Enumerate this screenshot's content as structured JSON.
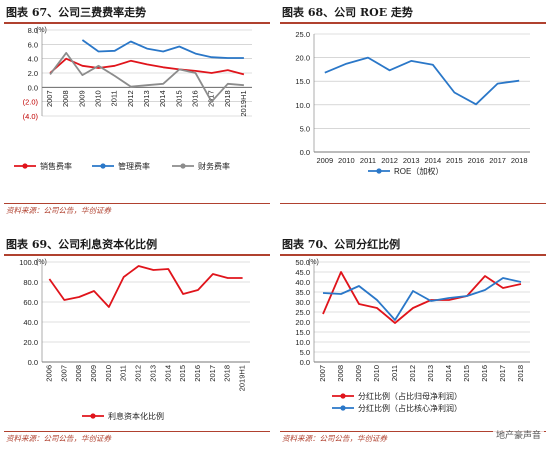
{
  "panels": [
    {
      "title": "图表 67、公司三费费率走势",
      "source": "资料来源：公司公告，华创证券"
    },
    {
      "title": "图表 68、公司 ROE 走势",
      "source": ""
    },
    {
      "title": "图表 69、公司利息资本化比例",
      "source": "资料来源：公司公告，华创证券"
    },
    {
      "title": "图表 70、公司分红比例",
      "source": "资料来源：公司公告，华创证券"
    }
  ],
  "watermark": "地产豪声音",
  "chart_data": [
    {
      "type": "line",
      "title": "",
      "unit_label": "(%)",
      "categories": [
        "2007",
        "2008",
        "2009",
        "2010",
        "2011",
        "2012",
        "2013",
        "2014",
        "2015",
        "2016",
        "2017",
        "2018",
        "2019H1"
      ],
      "ylim": [
        -4,
        8
      ],
      "yticks": [
        -4,
        -2,
        0,
        2,
        4,
        6,
        8
      ],
      "ytick_labels": [
        "(4.0)",
        "(2.0)",
        "0.0",
        "2.0",
        "4.0",
        "6.0",
        "8.0"
      ],
      "grid": true,
      "legend_position": "bottom",
      "series": [
        {
          "name": "销售费率",
          "color": "#e0141b",
          "values": [
            2.0,
            4.0,
            3.0,
            2.7,
            3.0,
            3.7,
            3.2,
            2.8,
            2.5,
            2.3,
            2.0,
            2.4,
            1.8
          ]
        },
        {
          "name": "管理费率",
          "color": "#2a77c8",
          "values": [
            null,
            null,
            6.6,
            5.0,
            5.1,
            6.4,
            5.4,
            5.0,
            5.7,
            4.7,
            4.2,
            4.1,
            4.1
          ]
        },
        {
          "name": "财务费率",
          "color": "#8c8c8c",
          "values": [
            1.8,
            4.8,
            1.7,
            3.0,
            1.6,
            0.1,
            0.3,
            0.5,
            2.5,
            2.0,
            -2.0,
            0.5,
            0.3
          ]
        }
      ]
    },
    {
      "type": "line",
      "title": "",
      "categories": [
        "2009",
        "2010",
        "2011",
        "2012",
        "2013",
        "2014",
        "2015",
        "2016",
        "2017",
        "2018"
      ],
      "ylim": [
        0,
        25
      ],
      "yticks": [
        0,
        5,
        10,
        15,
        20,
        25
      ],
      "ytick_labels": [
        "0.0",
        "5.0",
        "10.0",
        "15.0",
        "20.0",
        "25.0"
      ],
      "grid": true,
      "legend_position": "bottom",
      "series": [
        {
          "name": "ROE（加权）",
          "color": "#2a77c8",
          "values": [
            16.8,
            18.7,
            20.0,
            17.3,
            19.3,
            18.5,
            12.6,
            10.1,
            14.5,
            15.1
          ]
        }
      ]
    },
    {
      "type": "line",
      "title": "",
      "unit_label": "(%)",
      "categories": [
        "2006",
        "2007",
        "2008",
        "2009",
        "2010",
        "2011",
        "2012",
        "2013",
        "2014",
        "2015",
        "2016",
        "2017",
        "2018",
        "2019H1"
      ],
      "ylim": [
        0,
        100
      ],
      "yticks": [
        0,
        20,
        40,
        60,
        80,
        100
      ],
      "ytick_labels": [
        "0.0",
        "20.0",
        "40.0",
        "60.0",
        "80.0",
        "100.0"
      ],
      "grid": true,
      "legend_position": "bottom",
      "series": [
        {
          "name": "利息资本化比例",
          "color": "#e0141b",
          "values": [
            83,
            62,
            65,
            71,
            55,
            85,
            96,
            92,
            93,
            68,
            72,
            88,
            84,
            84
          ]
        }
      ]
    },
    {
      "type": "line",
      "title": "",
      "unit_label": "(%)",
      "categories": [
        "2007",
        "2008",
        "2009",
        "2010",
        "2011",
        "2012",
        "2013",
        "2014",
        "2015",
        "2016",
        "2017",
        "2018"
      ],
      "ylim": [
        0,
        50
      ],
      "yticks": [
        0,
        5,
        10,
        15,
        20,
        25,
        30,
        35,
        40,
        45,
        50
      ],
      "ytick_labels": [
        "0.0",
        "5.0",
        "10.0",
        "15.0",
        "20.0",
        "25.0",
        "30.0",
        "35.0",
        "40.0",
        "45.0",
        "50.0"
      ],
      "grid": true,
      "legend_position": "bottom",
      "series": [
        {
          "name": "分红比例（占比归母净利润）",
          "color": "#e0141b",
          "values": [
            24,
            45,
            29,
            27,
            19.5,
            27,
            31,
            31,
            33,
            43,
            37,
            39
          ]
        },
        {
          "name": "分红比例（占比核心净利润）",
          "color": "#2a77c8",
          "values": [
            34.5,
            34,
            38,
            31,
            21,
            35.5,
            30.5,
            32,
            33,
            36,
            42,
            40
          ]
        }
      ]
    }
  ]
}
